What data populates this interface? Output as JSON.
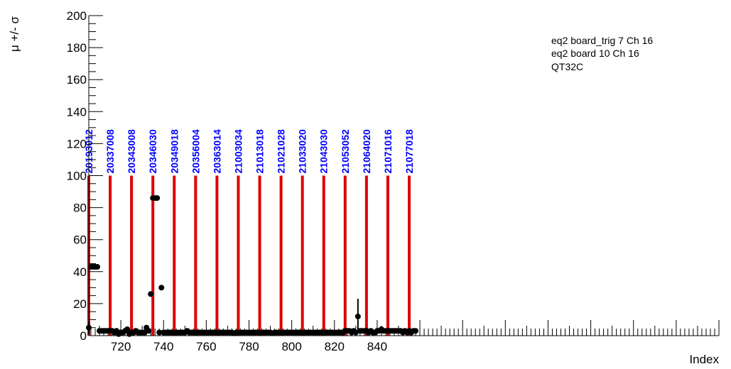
{
  "chart_data": {
    "type": "scatter",
    "ylabel": "μ +/- σ",
    "xlabel": "Index",
    "xlim": [
      705,
      1000
    ],
    "ylim": [
      0,
      200
    ],
    "x_ticks": [
      720,
      740,
      760,
      780,
      800,
      820,
      840
    ],
    "y_ticks": [
      0,
      20,
      40,
      60,
      80,
      100,
      120,
      140,
      160,
      180,
      200
    ],
    "grid": false,
    "info_lines": [
      "eq2 board_trig 7 Ch 16",
      "eq2 board 10 Ch 16",
      "QT32C"
    ],
    "info_placement": "top-right",
    "run_markers": {
      "color": "#dd0000",
      "label_color": "#0000ff",
      "height": 100,
      "lines": [
        {
          "x": 705,
          "label": "20193012"
        },
        {
          "x": 715,
          "label": "20337008"
        },
        {
          "x": 725,
          "label": "20343008"
        },
        {
          "x": 735,
          "label": "20346030"
        },
        {
          "x": 745,
          "label": "20349018"
        },
        {
          "x": 755,
          "label": "20356004"
        },
        {
          "x": 765,
          "label": "20363014"
        },
        {
          "x": 775,
          "label": "21003034"
        },
        {
          "x": 785,
          "label": "21013018"
        },
        {
          "x": 795,
          "label": "21021028"
        },
        {
          "x": 805,
          "label": "21033020"
        },
        {
          "x": 815,
          "label": "21043030"
        },
        {
          "x": 825,
          "label": "21053052"
        },
        {
          "x": 835,
          "label": "21064020"
        },
        {
          "x": 845,
          "label": "21071016"
        },
        {
          "x": 855,
          "label": "21077018"
        }
      ]
    },
    "series": [
      {
        "points": [
          [
            705,
            5
          ],
          [
            706,
            43
          ],
          [
            707,
            43
          ],
          [
            708,
            43
          ],
          [
            709,
            43
          ],
          [
            710,
            3
          ],
          [
            711,
            3
          ],
          [
            712,
            3
          ],
          [
            713,
            3
          ],
          [
            714,
            3
          ],
          [
            715,
            3
          ],
          [
            716,
            3
          ],
          [
            717,
            2
          ],
          [
            718,
            3
          ],
          [
            719,
            1
          ],
          [
            720,
            2
          ],
          [
            721,
            2
          ],
          [
            722,
            3
          ],
          [
            723,
            4
          ],
          [
            724,
            1
          ],
          [
            725,
            2
          ],
          [
            726,
            2
          ],
          [
            727,
            3
          ],
          [
            728,
            2
          ],
          [
            729,
            2
          ],
          [
            730,
            2
          ],
          [
            731,
            2
          ],
          [
            732,
            5
          ],
          [
            733,
            3
          ],
          [
            734,
            26
          ],
          [
            735,
            86
          ],
          [
            736,
            86
          ],
          [
            737,
            86
          ],
          [
            738,
            2
          ],
          [
            739,
            30
          ],
          [
            740,
            2
          ],
          [
            741,
            2
          ],
          [
            742,
            2
          ],
          [
            743,
            2
          ],
          [
            744,
            2
          ],
          [
            745,
            2
          ],
          [
            746,
            2
          ],
          [
            747,
            2
          ],
          [
            748,
            2
          ],
          [
            749,
            2
          ],
          [
            750,
            2
          ],
          [
            751,
            3
          ],
          [
            752,
            2
          ],
          [
            753,
            2
          ],
          [
            754,
            2
          ],
          [
            755,
            2
          ],
          [
            756,
            2
          ],
          [
            757,
            2
          ],
          [
            758,
            2
          ],
          [
            759,
            2
          ],
          [
            760,
            2
          ],
          [
            761,
            2
          ],
          [
            762,
            2
          ],
          [
            763,
            2
          ],
          [
            764,
            2
          ],
          [
            765,
            2
          ],
          [
            766,
            2
          ],
          [
            767,
            2
          ],
          [
            768,
            2
          ],
          [
            769,
            2
          ],
          [
            770,
            2
          ],
          [
            771,
            2
          ],
          [
            772,
            2
          ],
          [
            773,
            1.5
          ],
          [
            774,
            2
          ],
          [
            775,
            2
          ],
          [
            776,
            2
          ],
          [
            777,
            2
          ],
          [
            778,
            2
          ],
          [
            779,
            2
          ],
          [
            780,
            2
          ],
          [
            781,
            2
          ],
          [
            782,
            2
          ],
          [
            783,
            2
          ],
          [
            784,
            2
          ],
          [
            785,
            2
          ],
          [
            786,
            2
          ],
          [
            787,
            2
          ],
          [
            788,
            2
          ],
          [
            789,
            2
          ],
          [
            790,
            2
          ],
          [
            791,
            1.5
          ],
          [
            792,
            2
          ],
          [
            793,
            2
          ],
          [
            794,
            2
          ],
          [
            795,
            2
          ],
          [
            796,
            2
          ],
          [
            797,
            2
          ],
          [
            798,
            2
          ],
          [
            799,
            2
          ],
          [
            800,
            2
          ],
          [
            801,
            2
          ],
          [
            802,
            2
          ],
          [
            803,
            2
          ],
          [
            804,
            2
          ],
          [
            805,
            2
          ],
          [
            806,
            2
          ],
          [
            807,
            2
          ],
          [
            808,
            2
          ],
          [
            809,
            2
          ],
          [
            810,
            2
          ],
          [
            811,
            2
          ],
          [
            812,
            2
          ],
          [
            813,
            2
          ],
          [
            814,
            2
          ],
          [
            815,
            2
          ],
          [
            816,
            2
          ],
          [
            817,
            2
          ],
          [
            818,
            2
          ],
          [
            819,
            2
          ],
          [
            820,
            2
          ],
          [
            821,
            2
          ],
          [
            822,
            2
          ],
          [
            823,
            2
          ],
          [
            824,
            2
          ],
          [
            825,
            3
          ],
          [
            826,
            3
          ],
          [
            827,
            3
          ],
          [
            828,
            2
          ],
          [
            829,
            3
          ],
          [
            830,
            2
          ],
          [
            831,
            12
          ],
          [
            832,
            3
          ],
          [
            833,
            3
          ],
          [
            834,
            3
          ],
          [
            835,
            3
          ],
          [
            836,
            2
          ],
          [
            837,
            3
          ],
          [
            838,
            2
          ],
          [
            839,
            2
          ],
          [
            840,
            3
          ],
          [
            841,
            3
          ],
          [
            842,
            4
          ],
          [
            843,
            3
          ],
          [
            844,
            3
          ],
          [
            845,
            3
          ],
          [
            846,
            3
          ],
          [
            847,
            3
          ],
          [
            848,
            3
          ],
          [
            849,
            3
          ],
          [
            850,
            3
          ],
          [
            851,
            3
          ],
          [
            852,
            2
          ],
          [
            853,
            3
          ],
          [
            854,
            2
          ],
          [
            855,
            3
          ],
          [
            856,
            2
          ],
          [
            857,
            3
          ],
          [
            858,
            3
          ]
        ],
        "error_bars": [
          {
            "x": 831,
            "low": 2,
            "high": 23
          },
          {
            "x": 705,
            "low": 1,
            "high": 9
          },
          {
            "x": 842,
            "low": 2,
            "high": 6
          }
        ],
        "color": "#000000"
      }
    ]
  }
}
